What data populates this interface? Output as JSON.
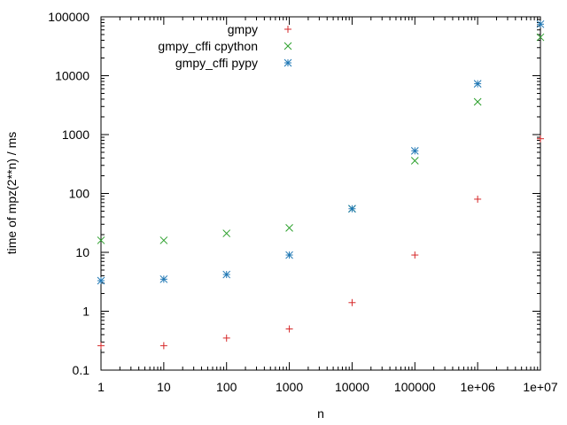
{
  "chart_data": {
    "type": "scatter",
    "title": "",
    "xlabel": "n",
    "ylabel": "time of mpz(2**n) / ms",
    "xscale": "log",
    "yscale": "log",
    "xlim": [
      1,
      10000000
    ],
    "ylim": [
      0.1,
      100000
    ],
    "grid": false,
    "legend_position": "top-right",
    "x_tick_labels": [
      "1",
      "10",
      "100",
      "1000",
      "10000",
      "100000",
      "1e+06",
      "1e+07"
    ],
    "x_ticks": [
      1,
      10,
      100,
      1000,
      10000,
      100000,
      1000000,
      10000000
    ],
    "y_tick_labels": [
      "0.1",
      "1",
      "10",
      "100",
      "1000",
      "10000",
      "100000"
    ],
    "y_ticks": [
      0.1,
      1,
      10,
      100,
      1000,
      10000,
      100000
    ],
    "series": [
      {
        "name": "gmpy",
        "marker": "plus",
        "color": "#d62728",
        "x": [
          1,
          10,
          100,
          1000,
          10000,
          100000,
          1000000,
          10000000
        ],
        "y": [
          0.26,
          0.26,
          0.35,
          0.5,
          1.4,
          9,
          80,
          850
        ]
      },
      {
        "name": "gmpy_cffi cpython",
        "marker": "cross",
        "color": "#2ca02c",
        "x": [
          1,
          10,
          100,
          1000,
          10000,
          100000,
          1000000,
          10000000
        ],
        "y": [
          16,
          16,
          21,
          26,
          55,
          360,
          3600,
          45000
        ]
      },
      {
        "name": "gmpy_cffi pypy",
        "marker": "star",
        "color": "#1f77b4",
        "x": [
          1,
          10,
          100,
          1000,
          10000,
          100000,
          1000000,
          10000000
        ],
        "y": [
          3.3,
          3.5,
          4.2,
          9,
          55,
          530,
          7300,
          75000
        ]
      }
    ]
  }
}
